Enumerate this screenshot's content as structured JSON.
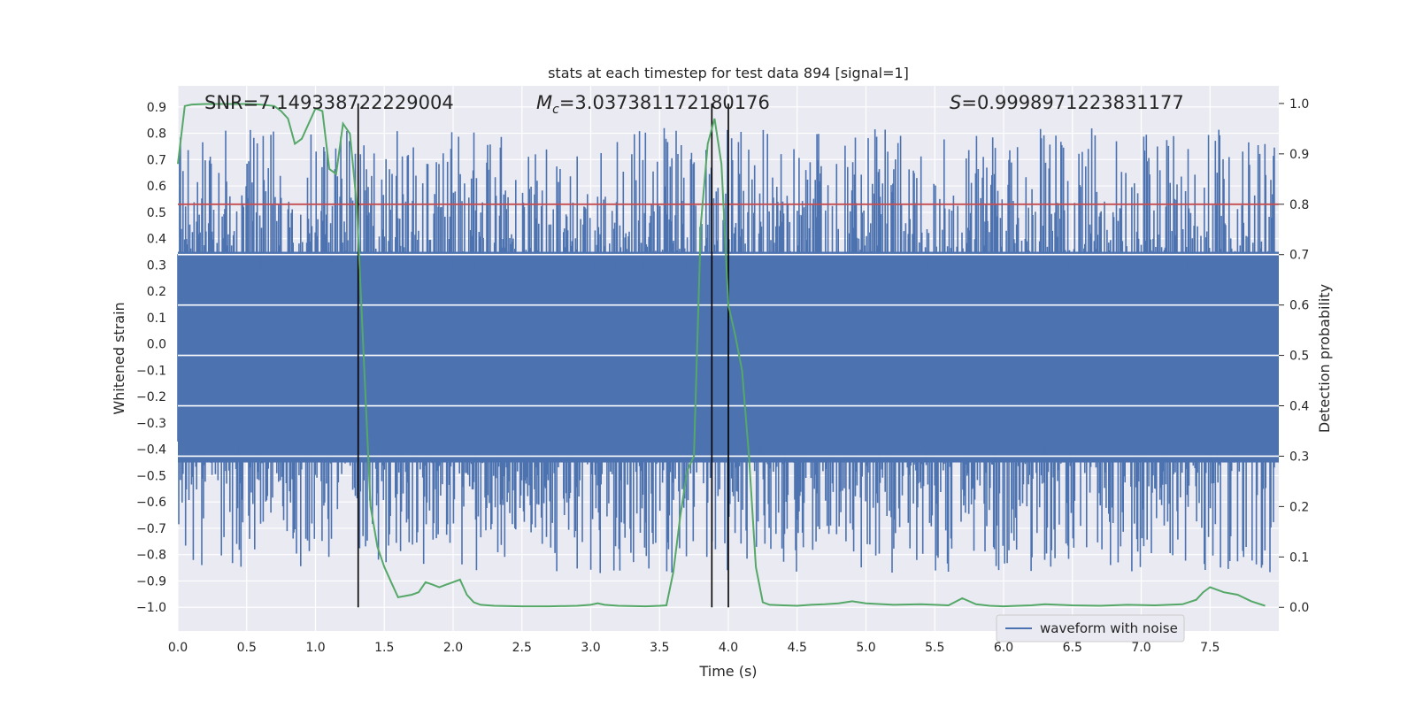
{
  "chart_data": {
    "type": "line",
    "title": "stats at each timestep for test data 894 [signal=1]",
    "xlabel": "Time (s)",
    "ylabel": "Whitened strain",
    "y2label": "Detection probability",
    "xlim": [
      0.0,
      8.0
    ],
    "ylim": [
      -1.09,
      0.98
    ],
    "y2lim": [
      -0.047,
      1.035
    ],
    "xticks": [
      "0.0",
      "0.5",
      "1.0",
      "1.5",
      "2.0",
      "2.5",
      "3.0",
      "3.5",
      "4.0",
      "4.5",
      "5.0",
      "5.5",
      "6.0",
      "6.5",
      "7.0",
      "7.5"
    ],
    "yticks": [
      "0.9",
      "0.8",
      "0.7",
      "0.6",
      "0.5",
      "0.4",
      "0.3",
      "0.2",
      "0.1",
      "0.0",
      "−0.1",
      "−0.2",
      "−0.3",
      "−0.4",
      "−0.5",
      "−0.6",
      "−0.7",
      "−0.8",
      "−0.9",
      "−1.0"
    ],
    "y2ticks": [
      "1.0",
      "0.9",
      "0.8",
      "0.7",
      "0.6",
      "0.5",
      "0.4",
      "0.3",
      "0.2",
      "0.1",
      "0.0"
    ],
    "grid": true,
    "legend_position": "lower right",
    "annotations": {
      "snr": "SNR=7.149338722229004",
      "mc_symbol": "M",
      "mc_sub": "c",
      "mc_value": "=3.037381172180176",
      "s_symbol": "S",
      "s_value": "=0.9998971223831177"
    },
    "threshold_y2": 0.8,
    "vlines_x": [
      1.31,
      3.88,
      4.0
    ],
    "series": [
      {
        "name": "waveform with noise",
        "kind": "noise-band",
        "color": "#4c72b0",
        "band_range": [
          -0.45,
          0.35
        ],
        "spike_max": 0.9,
        "spike_min": -1.0
      },
      {
        "kind": "line",
        "axis": "right",
        "color": "#55a868",
        "x": [
          0.0,
          0.05,
          0.1,
          0.2,
          0.3,
          0.4,
          0.5,
          0.6,
          0.7,
          0.75,
          0.8,
          0.85,
          0.9,
          1.0,
          1.05,
          1.1,
          1.15,
          1.2,
          1.25,
          1.3,
          1.35,
          1.4,
          1.45,
          1.5,
          1.55,
          1.6,
          1.7,
          1.75,
          1.8,
          1.85,
          1.9,
          1.95,
          2.0,
          2.05,
          2.1,
          2.15,
          2.2,
          2.3,
          2.5,
          2.7,
          2.9,
          3.0,
          3.05,
          3.1,
          3.2,
          3.4,
          3.5,
          3.55,
          3.6,
          3.65,
          3.7,
          3.75,
          3.8,
          3.85,
          3.9,
          3.95,
          4.0,
          4.05,
          4.1,
          4.15,
          4.2,
          4.25,
          4.3,
          4.4,
          4.5,
          4.6,
          4.7,
          4.8,
          4.9,
          5.0,
          5.2,
          5.4,
          5.6,
          5.7,
          5.8,
          5.9,
          6.0,
          6.2,
          6.3,
          6.5,
          6.7,
          6.9,
          7.1,
          7.3,
          7.4,
          7.45,
          7.5,
          7.55,
          7.6,
          7.7,
          7.8,
          7.9
        ],
        "y": [
          0.88,
          0.995,
          0.998,
          0.999,
          0.999,
          0.999,
          0.999,
          0.998,
          0.995,
          0.985,
          0.97,
          0.92,
          0.93,
          0.99,
          0.985,
          0.87,
          0.86,
          0.96,
          0.94,
          0.8,
          0.5,
          0.2,
          0.12,
          0.08,
          0.05,
          0.02,
          0.025,
          0.03,
          0.05,
          0.045,
          0.04,
          0.045,
          0.05,
          0.055,
          0.025,
          0.01,
          0.005,
          0.003,
          0.002,
          0.002,
          0.003,
          0.005,
          0.008,
          0.005,
          0.003,
          0.002,
          0.003,
          0.004,
          0.07,
          0.18,
          0.27,
          0.3,
          0.76,
          0.92,
          0.97,
          0.88,
          0.6,
          0.54,
          0.47,
          0.3,
          0.08,
          0.01,
          0.005,
          0.004,
          0.003,
          0.005,
          0.006,
          0.008,
          0.012,
          0.008,
          0.005,
          0.006,
          0.004,
          0.018,
          0.006,
          0.003,
          0.002,
          0.004,
          0.006,
          0.004,
          0.003,
          0.005,
          0.004,
          0.006,
          0.015,
          0.03,
          0.04,
          0.035,
          0.03,
          0.025,
          0.012,
          0.003
        ]
      }
    ]
  }
}
